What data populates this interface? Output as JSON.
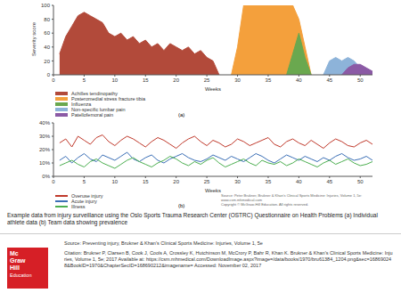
{
  "chart_data": [
    {
      "type": "area",
      "subtitle": "(a)",
      "x_label": "Weeks",
      "y_label": "Severity score",
      "grid": false,
      "stacked": false,
      "x": [
        1,
        2,
        3,
        4,
        5,
        6,
        7,
        8,
        9,
        10,
        11,
        12,
        13,
        14,
        15,
        16,
        17,
        18,
        19,
        20,
        21,
        22,
        23,
        24,
        25,
        26,
        27,
        28,
        29,
        30,
        31,
        32,
        33,
        34,
        35,
        36,
        37,
        38,
        39,
        40,
        41,
        42,
        43,
        44,
        45,
        46,
        47,
        48,
        49,
        50,
        51,
        52
      ],
      "xlim": [
        0,
        52
      ],
      "xticks": [
        0,
        5,
        10,
        15,
        20,
        25,
        30,
        35,
        40,
        45,
        50
      ],
      "ylim": [
        0,
        100
      ],
      "yticks": [
        0,
        20,
        40,
        60,
        80,
        100
      ],
      "series": [
        {
          "name": "Achilles tendinopathy",
          "color": "#b24a3a",
          "values": [
            30,
            55,
            70,
            85,
            90,
            85,
            80,
            75,
            60,
            55,
            60,
            50,
            55,
            45,
            50,
            40,
            45,
            35,
            45,
            40,
            35,
            40,
            30,
            35,
            25,
            20,
            0,
            null,
            null,
            null,
            null,
            null,
            null,
            null,
            null,
            null,
            null,
            null,
            null,
            null,
            null,
            null,
            null,
            null,
            null,
            null,
            null,
            null,
            null,
            null,
            null,
            null
          ]
        },
        {
          "name": "Posteromedial stress fracture tibia",
          "color": "#f4a03c",
          "values": [
            null,
            null,
            null,
            null,
            null,
            null,
            null,
            null,
            null,
            null,
            null,
            null,
            null,
            null,
            null,
            null,
            null,
            null,
            null,
            null,
            null,
            null,
            null,
            null,
            null,
            null,
            null,
            null,
            0,
            40,
            100,
            100,
            100,
            100,
            100,
            100,
            100,
            100,
            100,
            80,
            40,
            0,
            null,
            null,
            null,
            null,
            null,
            null,
            null,
            null,
            null,
            null
          ]
        },
        {
          "name": "Influenza",
          "color": "#6aa84f",
          "values": [
            null,
            null,
            null,
            null,
            null,
            null,
            null,
            null,
            null,
            null,
            null,
            null,
            null,
            null,
            null,
            null,
            null,
            null,
            null,
            null,
            null,
            null,
            null,
            null,
            null,
            null,
            null,
            null,
            null,
            null,
            null,
            null,
            null,
            null,
            null,
            null,
            null,
            0,
            30,
            60,
            25,
            0,
            null,
            null,
            null,
            null,
            null,
            null,
            null,
            null,
            null,
            null
          ]
        },
        {
          "name": "Non-specific lumbar pain",
          "color": "#8db3d9",
          "values": [
            null,
            null,
            null,
            null,
            null,
            null,
            null,
            null,
            null,
            null,
            null,
            null,
            null,
            null,
            null,
            null,
            null,
            null,
            null,
            null,
            null,
            null,
            null,
            null,
            null,
            null,
            null,
            null,
            null,
            null,
            null,
            null,
            null,
            null,
            null,
            null,
            null,
            null,
            null,
            null,
            null,
            null,
            null,
            0,
            20,
            25,
            20,
            25,
            20,
            10,
            0,
            null
          ]
        },
        {
          "name": "Patellofemoral pain",
          "color": "#8b5aa5",
          "values": [
            null,
            null,
            null,
            null,
            null,
            null,
            null,
            null,
            null,
            null,
            null,
            null,
            null,
            null,
            null,
            null,
            null,
            null,
            null,
            null,
            null,
            null,
            null,
            null,
            null,
            null,
            null,
            null,
            null,
            null,
            null,
            null,
            null,
            null,
            null,
            null,
            null,
            null,
            null,
            null,
            null,
            null,
            null,
            null,
            null,
            null,
            0,
            10,
            15,
            15,
            10,
            5
          ]
        }
      ]
    },
    {
      "type": "line",
      "subtitle": "(b)",
      "x_label": "Weeks",
      "grid": false,
      "marker": "none",
      "x": [
        1,
        2,
        3,
        4,
        5,
        6,
        7,
        8,
        9,
        10,
        11,
        12,
        13,
        14,
        15,
        16,
        17,
        18,
        19,
        20,
        21,
        22,
        23,
        24,
        25,
        26,
        27,
        28,
        29,
        30,
        31,
        32,
        33,
        34,
        35,
        36,
        37,
        38,
        39,
        40,
        41,
        42,
        43,
        44,
        45,
        46,
        47,
        48,
        49,
        50,
        51,
        52
      ],
      "xlim": [
        0,
        52
      ],
      "xticks": [
        0,
        5,
        10,
        15,
        20,
        25,
        30,
        35,
        40,
        45,
        50
      ],
      "ylim": [
        0,
        40
      ],
      "yticks": [
        {
          "value": 0,
          "label": "0%"
        },
        {
          "value": 10,
          "label": "10%"
        },
        {
          "value": 20,
          "label": "20%"
        },
        {
          "value": 30,
          "label": "30%"
        },
        {
          "value": 40,
          "label": "40%"
        }
      ],
      "series": [
        {
          "name": "Overuse injury",
          "color": "#c0392b",
          "values": [
            25,
            28,
            22,
            30,
            27,
            24,
            29,
            31,
            26,
            23,
            27,
            30,
            28,
            25,
            22,
            26,
            29,
            27,
            24,
            21,
            25,
            28,
            30,
            26,
            23,
            27,
            25,
            22,
            24,
            28,
            26,
            23,
            25,
            27,
            29,
            24,
            22,
            26,
            28,
            25,
            23,
            27,
            24,
            21,
            25,
            28,
            26,
            23,
            22,
            25,
            27,
            24
          ]
        },
        {
          "name": "Acute injury",
          "color": "#3b6fb6",
          "values": [
            12,
            15,
            10,
            14,
            17,
            13,
            11,
            16,
            14,
            12,
            15,
            18,
            13,
            11,
            14,
            16,
            12,
            10,
            13,
            15,
            17,
            14,
            12,
            11,
            13,
            16,
            14,
            12,
            15,
            13,
            11,
            14,
            17,
            15,
            12,
            10,
            13,
            16,
            14,
            12,
            15,
            13,
            11,
            14,
            12,
            15,
            17,
            14,
            12,
            13,
            15,
            12
          ]
        },
        {
          "name": "Illness",
          "color": "#4caf50",
          "values": [
            8,
            10,
            12,
            9,
            7,
            11,
            13,
            10,
            8,
            6,
            9,
            12,
            14,
            11,
            9,
            7,
            10,
            12,
            15,
            13,
            10,
            8,
            11,
            9,
            12,
            14,
            10,
            7,
            9,
            11,
            13,
            10,
            8,
            12,
            10,
            9,
            11,
            8,
            10,
            13,
            11,
            9,
            7,
            10,
            12,
            9,
            11,
            13,
            10,
            8,
            9,
            11
          ]
        }
      ]
    }
  ],
  "figure_credit": [
    "Source: Peter Brukner, Brukner & Khan's Clinical Sports Medicine: Injuries, Volume 1, 5e: www.csm.mhmedical.com",
    "Copyright © McGraw-Hill Education. All rights reserved."
  ],
  "caption": "Example data from injury surveillance using the Oslo Sports Trauma Research Center (OSTRC) Questionnaire on Health Problems (a) Individual athlete data (b) Team data showing prevalence",
  "source": "Source: Preventing injury, Brukner & Khan's Clinical Sports Medicine: Injuries, Volume 1, 5e",
  "citation": "Citation: Brukner P, Clarsen B, Cook J, Cools A, Crossley K, Hutchinson M, McCrory P, Bahr R, Khan K. Brukner & Khan's Clinical Sports Medicine: Injuries, Volume 1, 5e; 2017 Available at: https://csm.mhmedical.com/DownloadImage.aspx?image=/data/books/1970/bru61384_1204.png&sec=168690248&BookID=1970&ChapterSecID=168690212&imagename= Accessed: November 02, 2017",
  "logo": [
    "Mc",
    "Graw",
    "Hill",
    "Education"
  ]
}
